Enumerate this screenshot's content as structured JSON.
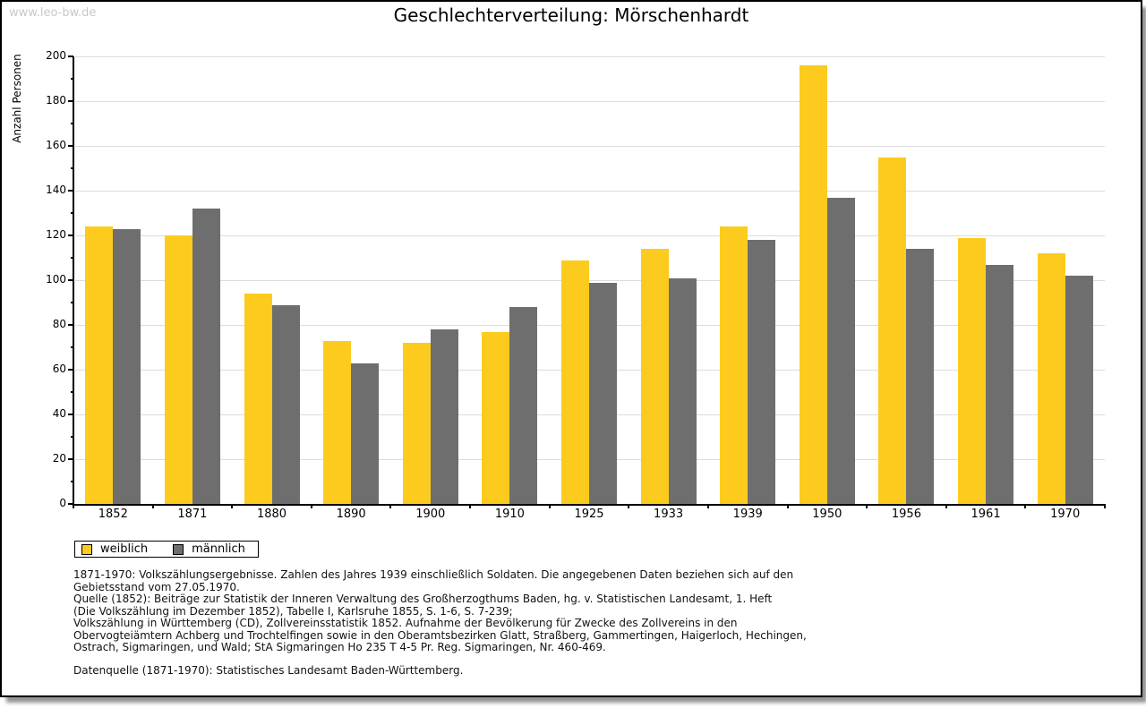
{
  "page": {
    "watermark": "www.leo-bw.de",
    "title": "Geschlechterverteilung: Mörschenhardt"
  },
  "chart_data": {
    "type": "bar",
    "title": "Geschlechterverteilung: Mörschenhardt",
    "xlabel": "",
    "ylabel": "Anzahl Personen",
    "ylim": [
      0,
      200
    ],
    "ytick_step": 20,
    "yminor_step": 10,
    "grid": true,
    "legend_position": "bottom-left",
    "categories": [
      "1852",
      "1871",
      "1880",
      "1890",
      "1900",
      "1910",
      "1925",
      "1933",
      "1939",
      "1950",
      "1956",
      "1961",
      "1970"
    ],
    "series": [
      {
        "name": "weiblich",
        "color": "#fccb1d",
        "values": [
          124,
          120,
          94,
          73,
          72,
          77,
          109,
          114,
          124,
          196,
          155,
          119,
          112
        ]
      },
      {
        "name": "männlich",
        "color": "#6e6e6e",
        "values": [
          123,
          132,
          89,
          63,
          78,
          88,
          99,
          101,
          118,
          137,
          114,
          107,
          102
        ]
      }
    ]
  },
  "legend": {
    "items": [
      {
        "label": "weiblich",
        "color": "#fccb1d"
      },
      {
        "label": "männlich",
        "color": "#6e6e6e"
      }
    ]
  },
  "footnotes": {
    "lines": [
      "1871-1970: Volkszählungsergebnisse. Zahlen des Jahres 1939 einschließlich Soldaten. Die angegebenen Daten beziehen sich auf den",
      "Gebietsstand vom 27.05.1970.",
      "Quelle (1852): Beiträge zur Statistik der Inneren Verwaltung des Großherzogthums Baden, hg. v. Statistischen Landesamt, 1. Heft",
      "(Die Volkszählung im Dezember 1852), Tabelle I, Karlsruhe 1855, S. 1-6, S. 7-239;",
      "Volkszählung in Württemberg (CD), Zollvereinsstatistik 1852. Aufnahme der Bevölkerung für Zwecke des Zollvereins in den",
      "Obervogteiämtern Achberg und Trochtelfingen sowie in den Oberamtsbezirken Glatt, Straßberg, Gammertingen, Haigerloch, Hechingen,",
      "Ostrach, Sigmaringen, und Wald; StA Sigmaringen Ho 235 T 4-5 Pr. Reg. Sigmaringen, Nr. 460-469."
    ],
    "datasource": "Datenquelle (1871-1970): Statistisches Landesamt Baden-Württemberg."
  },
  "colors": {
    "female_bar": "#fccb1d",
    "male_bar": "#6e6e6e",
    "gridline": "#dcdcdc",
    "watermark": "#c9c9c9",
    "axis": "#000000"
  }
}
